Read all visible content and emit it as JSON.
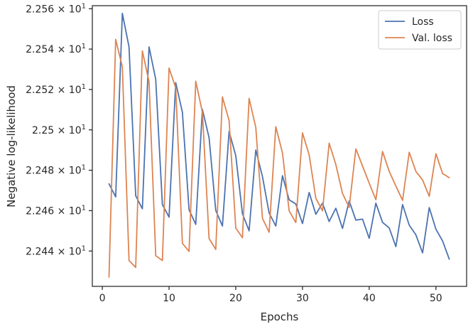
{
  "chart_data": {
    "type": "line",
    "xlabel": "Epochs",
    "ylabel": "Negative log-likelihood",
    "xlim": [
      -1.5,
      54.6
    ],
    "ylim": [
      22.4225,
      22.5615
    ],
    "xticks": [
      0,
      10,
      20,
      30,
      40,
      50
    ],
    "yticks": [
      22.44,
      22.46,
      22.48,
      22.5,
      22.52,
      22.54,
      22.56
    ],
    "ytick_labels": [
      {
        "mantissa": "2.244",
        "exp": "1"
      },
      {
        "mantissa": "2.246",
        "exp": "1"
      },
      {
        "mantissa": "2.248",
        "exp": "1"
      },
      {
        "mantissa": "2.25",
        "exp": "1"
      },
      {
        "mantissa": "2.252",
        "exp": "1"
      },
      {
        "mantissa": "2.254",
        "exp": "1"
      },
      {
        "mantissa": "2.256",
        "exp": "1"
      }
    ],
    "grid": false,
    "legend_position": "top-right",
    "x": [
      1,
      2,
      3,
      4,
      5,
      6,
      7,
      8,
      9,
      10,
      11,
      12,
      13,
      14,
      15,
      16,
      17,
      18,
      19,
      20,
      21,
      22,
      23,
      24,
      25,
      26,
      27,
      28,
      29,
      30,
      31,
      32,
      33,
      34,
      35,
      36,
      37,
      38,
      39,
      40,
      41,
      42,
      43,
      44,
      45,
      46,
      47,
      48,
      49,
      50,
      51,
      52
    ],
    "series": [
      {
        "name": "Loss",
        "color": "#4c72b0",
        "values": [
          22.4733,
          22.4668,
          22.5577,
          22.5411,
          22.4674,
          22.4609,
          22.5411,
          22.5251,
          22.463,
          22.4568,
          22.5234,
          22.5087,
          22.4604,
          22.4532,
          22.5101,
          22.4961,
          22.4601,
          22.4524,
          22.4992,
          22.4872,
          22.4585,
          22.45,
          22.49,
          22.4769,
          22.4588,
          22.4524,
          22.4773,
          22.4654,
          22.4633,
          22.4536,
          22.469,
          22.4582,
          22.4637,
          22.4546,
          22.4612,
          22.4512,
          22.4648,
          22.4553,
          22.4558,
          22.4463,
          22.4637,
          22.4542,
          22.4514,
          22.4422,
          22.463,
          22.4528,
          22.448,
          22.4391,
          22.4615,
          22.4508,
          22.445,
          22.436
        ]
      },
      {
        "name": "Val. loss",
        "color": "#dd8452",
        "values": [
          22.4271,
          22.5448,
          22.5312,
          22.4353,
          22.4319,
          22.5391,
          22.5238,
          22.4377,
          22.4353,
          22.5306,
          22.5209,
          22.4438,
          22.4398,
          22.5241,
          22.5087,
          22.4462,
          22.4408,
          22.5163,
          22.5046,
          22.4514,
          22.4466,
          22.5156,
          22.5012,
          22.4562,
          22.4493,
          22.5016,
          22.4886,
          22.4599,
          22.4541,
          22.4985,
          22.4876,
          22.4661,
          22.4599,
          22.4934,
          22.4828,
          22.4685,
          22.4616,
          22.4906,
          22.4821,
          22.4736,
          22.4654,
          22.4893,
          22.4794,
          22.4722,
          22.4651,
          22.4889,
          22.4794,
          22.4752,
          22.4671,
          22.4882,
          22.4784,
          22.4763
        ]
      }
    ]
  }
}
